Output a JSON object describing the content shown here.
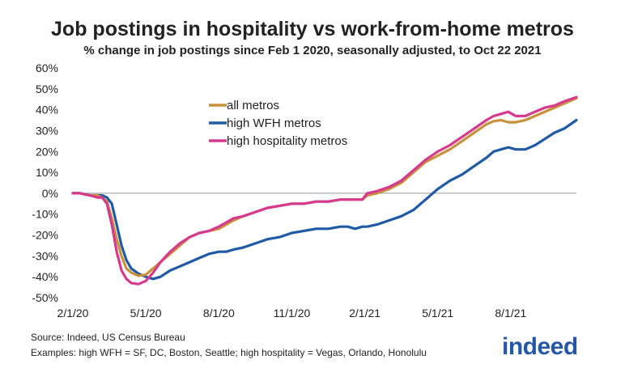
{
  "title": "Job postings in hospitality vs work-from-home metros",
  "subtitle": "% change in job postings since Feb 1 2020, seasonally adjusted, to Oct 22 2021",
  "footer": {
    "source": "Source: Indeed, US Census Bureau",
    "examples": "Examples: high WFH = SF, DC, Boston, Seattle; high hospitality = Vegas, Orlando, Honolulu"
  },
  "logo": {
    "text": "indeed"
  },
  "colors": {
    "all_metros": "#c8913a",
    "high_wfh": "#1f5aa6",
    "high_hospitality": "#d63a8f",
    "axis": "#999999",
    "text": "#222222"
  },
  "chart_data": {
    "type": "line",
    "title": "Job postings in hospitality vs work-from-home metros",
    "subtitle": "% change in job postings since Feb 1 2020, seasonally adjusted, to Oct 22 2021",
    "xlabel": "",
    "ylabel": "",
    "ylim": [
      -50,
      60
    ],
    "yticks": [
      -50,
      -40,
      -30,
      -20,
      -10,
      0,
      10,
      20,
      30,
      40,
      50,
      60
    ],
    "ytick_labels": [
      "-50%",
      "-40%",
      "-30%",
      "-20%",
      "-10%",
      "0%",
      "10%",
      "20%",
      "30%",
      "40%",
      "50%",
      "60%"
    ],
    "x_unit": "months since Feb 1 2020",
    "xlim": [
      0,
      20.7
    ],
    "xticks": [
      0,
      3,
      6,
      9,
      12,
      15,
      18
    ],
    "xtick_labels": [
      "2/1/20",
      "5/1/20",
      "8/1/20",
      "11/1/20",
      "2/1/21",
      "5/1/21",
      "8/1/21"
    ],
    "legend_position": "top-center",
    "grid": false,
    "series": [
      {
        "name": "all metros",
        "color": "#c8913a",
        "x": [
          0,
          0.3,
          0.7,
          1.0,
          1.2,
          1.4,
          1.6,
          1.8,
          2.0,
          2.2,
          2.4,
          2.7,
          3.0,
          3.3,
          3.6,
          4.0,
          4.4,
          4.8,
          5.2,
          5.6,
          6.0,
          6.3,
          6.6,
          7.0,
          7.5,
          8.0,
          8.5,
          9.0,
          9.5,
          10.0,
          10.5,
          11.0,
          11.3,
          11.6,
          11.9,
          12.1,
          12.5,
          13.0,
          13.5,
          14.0,
          14.5,
          15.0,
          15.5,
          16.0,
          16.5,
          17.0,
          17.3,
          17.6,
          17.9,
          18.2,
          18.6,
          19.0,
          19.4,
          19.8,
          20.2,
          20.7
        ],
        "values": [
          0,
          0,
          -1,
          -1,
          -2,
          -4,
          -12,
          -22,
          -30,
          -36,
          -38,
          -39.5,
          -39,
          -36,
          -33,
          -29,
          -25,
          -21,
          -19,
          -18,
          -17,
          -15,
          -13,
          -11,
          -9,
          -7,
          -6,
          -5,
          -5,
          -4,
          -4,
          -3,
          -3,
          -3,
          -3,
          -1,
          0,
          2,
          5,
          10,
          15,
          18,
          21,
          25,
          29,
          33,
          34.5,
          35,
          34,
          34,
          35,
          37,
          39,
          41,
          43,
          45.5
        ]
      },
      {
        "name": "high WFH metros",
        "color": "#1f5aa6",
        "x": [
          0,
          0.3,
          0.7,
          1.0,
          1.2,
          1.4,
          1.6,
          1.8,
          2.0,
          2.2,
          2.4,
          2.7,
          3.0,
          3.3,
          3.6,
          4.0,
          4.4,
          4.8,
          5.2,
          5.6,
          6.0,
          6.3,
          6.6,
          7.0,
          7.5,
          8.0,
          8.5,
          9.0,
          9.5,
          10.0,
          10.5,
          11.0,
          11.3,
          11.6,
          11.9,
          12.1,
          12.5,
          13.0,
          13.5,
          14.0,
          14.5,
          15.0,
          15.5,
          16.0,
          16.5,
          17.0,
          17.3,
          17.6,
          17.9,
          18.2,
          18.6,
          19.0,
          19.4,
          19.8,
          20.2,
          20.7
        ],
        "values": [
          0,
          0,
          -1,
          -1,
          -1,
          -2,
          -5,
          -15,
          -25,
          -32,
          -36,
          -38.5,
          -40,
          -41,
          -40,
          -37,
          -35,
          -33,
          -31,
          -29,
          -28,
          -28,
          -27,
          -26,
          -24,
          -22,
          -21,
          -19,
          -18,
          -17,
          -17,
          -16,
          -16,
          -17,
          -16,
          -16,
          -15,
          -13,
          -11,
          -8,
          -3,
          2,
          6,
          9,
          13,
          17,
          20,
          21,
          22,
          21,
          21,
          23,
          26,
          29,
          31,
          35
        ]
      },
      {
        "name": "high hospitality metros",
        "color": "#d63a8f",
        "x": [
          0,
          0.3,
          0.7,
          1.0,
          1.2,
          1.4,
          1.6,
          1.8,
          2.0,
          2.2,
          2.4,
          2.7,
          3.0,
          3.3,
          3.6,
          4.0,
          4.4,
          4.8,
          5.2,
          5.6,
          6.0,
          6.3,
          6.6,
          7.0,
          7.5,
          8.0,
          8.5,
          9.0,
          9.5,
          10.0,
          10.5,
          11.0,
          11.3,
          11.6,
          11.9,
          12.1,
          12.5,
          13.0,
          13.5,
          14.0,
          14.5,
          15.0,
          15.5,
          16.0,
          16.5,
          17.0,
          17.3,
          17.6,
          17.9,
          18.2,
          18.6,
          19.0,
          19.4,
          19.8,
          20.2,
          20.7
        ],
        "values": [
          0,
          0,
          -1,
          -2,
          -2,
          -5,
          -15,
          -28,
          -37,
          -41,
          -43,
          -43.5,
          -42,
          -38,
          -33,
          -28,
          -24,
          -21,
          -19,
          -18,
          -16,
          -14,
          -12,
          -11,
          -9,
          -7,
          -6,
          -5,
          -5,
          -4,
          -4,
          -3,
          -3,
          -3,
          -3,
          0,
          1,
          3,
          6,
          11,
          16,
          20,
          23,
          27,
          31,
          35,
          37,
          38,
          39,
          37,
          37,
          39,
          41,
          42,
          44,
          46
        ]
      }
    ]
  }
}
